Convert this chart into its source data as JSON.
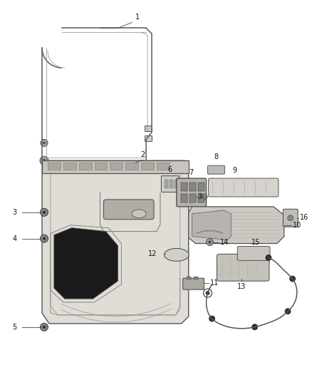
{
  "background_color": "#ffffff",
  "fig_width": 4.38,
  "fig_height": 5.33,
  "dpi": 100,
  "label_fontsize": 7,
  "label_color": "#111111",
  "line_color": "#555555",
  "line_width": 0.8
}
